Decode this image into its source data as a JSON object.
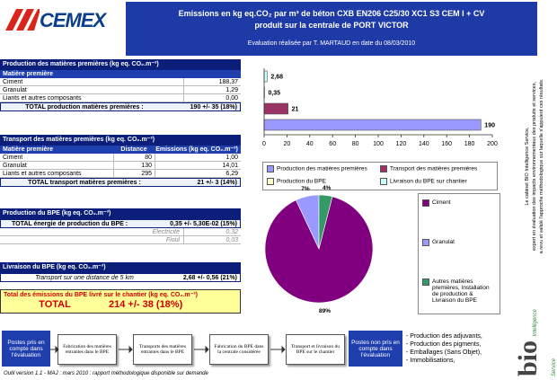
{
  "header": {
    "logo": "CEMEX",
    "title_line1": "Emissions en kg eq.CO₂ par m³ de béton CXB EN206 C25/30 XC1 S3 CEM I + CV",
    "title_line2": "produit sur la centrale de PORT VICTOR",
    "subtitle": "Evaluation réalisée par T. MARTAUD en date du 08/03/2010"
  },
  "sidebar": {
    "lines": [
      "Le cabinet BIO Intelligence Service,",
      "expert en évaluation des impacts environnementaux des produits et services,",
      "a revu et validé l'approche méthodologique sur laquelle s'appuient ces résultats."
    ],
    "logo": "bio",
    "logo_sub": "Intelligence Service"
  },
  "raw_materials": {
    "title": "Production des matières premières (kg eq. CO₂.m⁻³)",
    "column": "Matière première",
    "rows": [
      [
        "Ciment",
        "188,37"
      ],
      [
        "Granulat",
        "1,29"
      ],
      [
        "Liants et autres composants",
        "0,00"
      ]
    ],
    "total_label": "TOTAL production matières premières :",
    "total_value": "190 +/- 35 (18%)"
  },
  "transport": {
    "title": "Transport des matières premières (kg eq. CO₂.m⁻³)",
    "columns": [
      "Matière première",
      "Distance (km)",
      "Emissions (kg eq. CO₂.m⁻³)"
    ],
    "rows": [
      [
        "Ciment",
        "80",
        "1,00"
      ],
      [
        "Granulat",
        "130",
        "14,01"
      ],
      [
        "Liants et autres composants",
        "295",
        "6,29"
      ]
    ],
    "total_label": "TOTAL transport matières premières :",
    "total_value": "21 +/- 3 (14%)"
  },
  "plant": {
    "title": "Production du BPE (kg eq. CO₂.m⁻³)",
    "total_label": "TOTAL énergie de production du BPE :",
    "total_value": "0,35 +/- 5,30E-02 (15%)",
    "rows": [
      [
        "Electricité",
        "0,32"
      ],
      [
        "Fioul",
        "0,03"
      ]
    ]
  },
  "delivery": {
    "title": "Livraison du BPE (kg eq. CO₂.m⁻³)",
    "row_label": "Transport sur une distance de 5 km",
    "row_value": "2,68 +/- 0,56 (21%)"
  },
  "grand_total": {
    "title": "Total des émissions du BPE livré sur le chantier (kg eq. CO₂.m⁻³)",
    "label": "TOTAL",
    "value": "214 +/- 38 (18%)"
  },
  "chart_data": [
    {
      "type": "bar",
      "orientation": "horizontal",
      "categories": [
        "Production des matières premières",
        "Transport des matières premières",
        "Production du BPE",
        "Livraison du BPE sur chantier"
      ],
      "values": [
        190,
        21,
        0.35,
        2.68
      ],
      "value_labels": [
        "190",
        "21",
        "0,35",
        "2,68"
      ],
      "colors": [
        "#9999ff",
        "#993366",
        "#ffffcc",
        "#ccffff"
      ],
      "xlim": [
        0,
        200
      ],
      "xticks": [
        0,
        20,
        40,
        60,
        80,
        100,
        120,
        140,
        160,
        180,
        200
      ],
      "legend": "bottom"
    },
    {
      "type": "pie",
      "categories": [
        "Ciment",
        "Granulat",
        "Autres matières premières, Installation de production & Livraison du BPE"
      ],
      "values": [
        89,
        7,
        4
      ],
      "value_labels": [
        "89%",
        "7%",
        "4%"
      ],
      "colors": [
        "#800080",
        "#9999ff",
        "#339966"
      ],
      "legend": "right"
    }
  ],
  "flow": {
    "included_label": "Postes pris en compte dans l'évaluation",
    "steps": [
      "Fabrication des matières entrantes dans le BPE",
      "Transports des matières entrantes dans le BPE",
      "Fabrication du BPE dans la centrale considérée",
      "Transport et livraison du BPE sur le chantier"
    ],
    "excluded_label": "Postes non pris en compte dans l'évaluation",
    "excluded_items": [
      "- Production des adjuvants,",
      "- Production des pigments,",
      "- Emballages (Sans Objet),",
      "- Immobilisations,"
    ]
  },
  "footer_note": "Outil version 1.1 - MAJ : mars 2010 : rapport méthodologique disponible sur demande"
}
